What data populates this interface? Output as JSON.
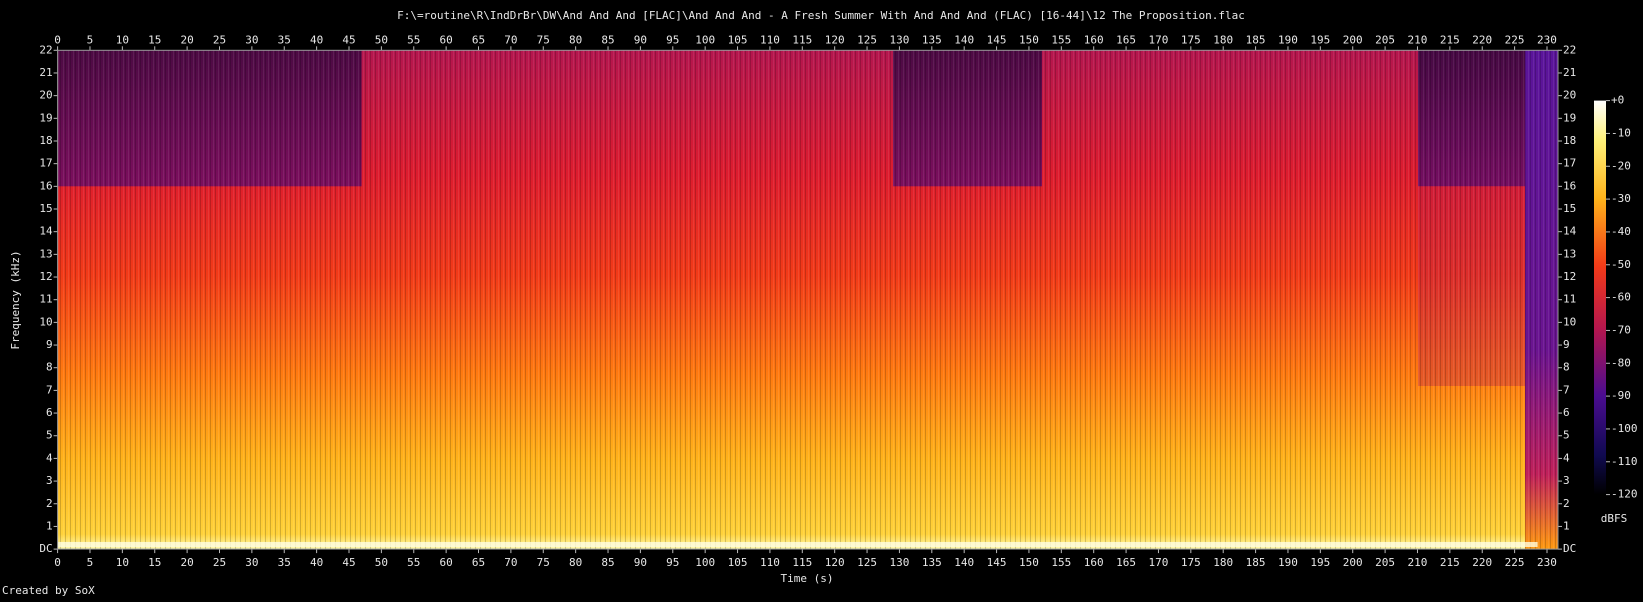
{
  "chart_data": {
    "type": "spectrogram",
    "title": "F:\\=routine\\R\\IndDrBr\\DW\\And And And [FLAC]\\And And And - A Fresh Summer With And And And (FLAC) [16-44]\\12 The Proposition.flac",
    "x_label": "Time (s)",
    "y_label": "Frequency (kHz)",
    "xlim": [
      0,
      231.7
    ],
    "ylim": [
      0,
      22
    ],
    "xticks": [
      0,
      5,
      10,
      15,
      20,
      25,
      30,
      35,
      40,
      45,
      50,
      55,
      60,
      65,
      70,
      75,
      80,
      85,
      90,
      95,
      100,
      105,
      110,
      115,
      120,
      125,
      130,
      135,
      140,
      145,
      150,
      155,
      160,
      165,
      170,
      175,
      180,
      185,
      190,
      195,
      200,
      205,
      210,
      215,
      220,
      225,
      230
    ],
    "yticks": [
      {
        "value": 0,
        "label": "DC"
      },
      1,
      2,
      3,
      4,
      5,
      6,
      7,
      8,
      9,
      10,
      11,
      12,
      13,
      14,
      15,
      16,
      17,
      18,
      19,
      20,
      21,
      22
    ],
    "colorbar": {
      "label": "dBFS",
      "lim": [
        -120,
        0
      ],
      "ticks": [
        {
          "value": 0,
          "label": "+0"
        },
        -10,
        -20,
        -30,
        -40,
        -50,
        -60,
        -70,
        -80,
        -90,
        -100,
        -110,
        -120
      ]
    },
    "footer": "Created by SoX"
  }
}
